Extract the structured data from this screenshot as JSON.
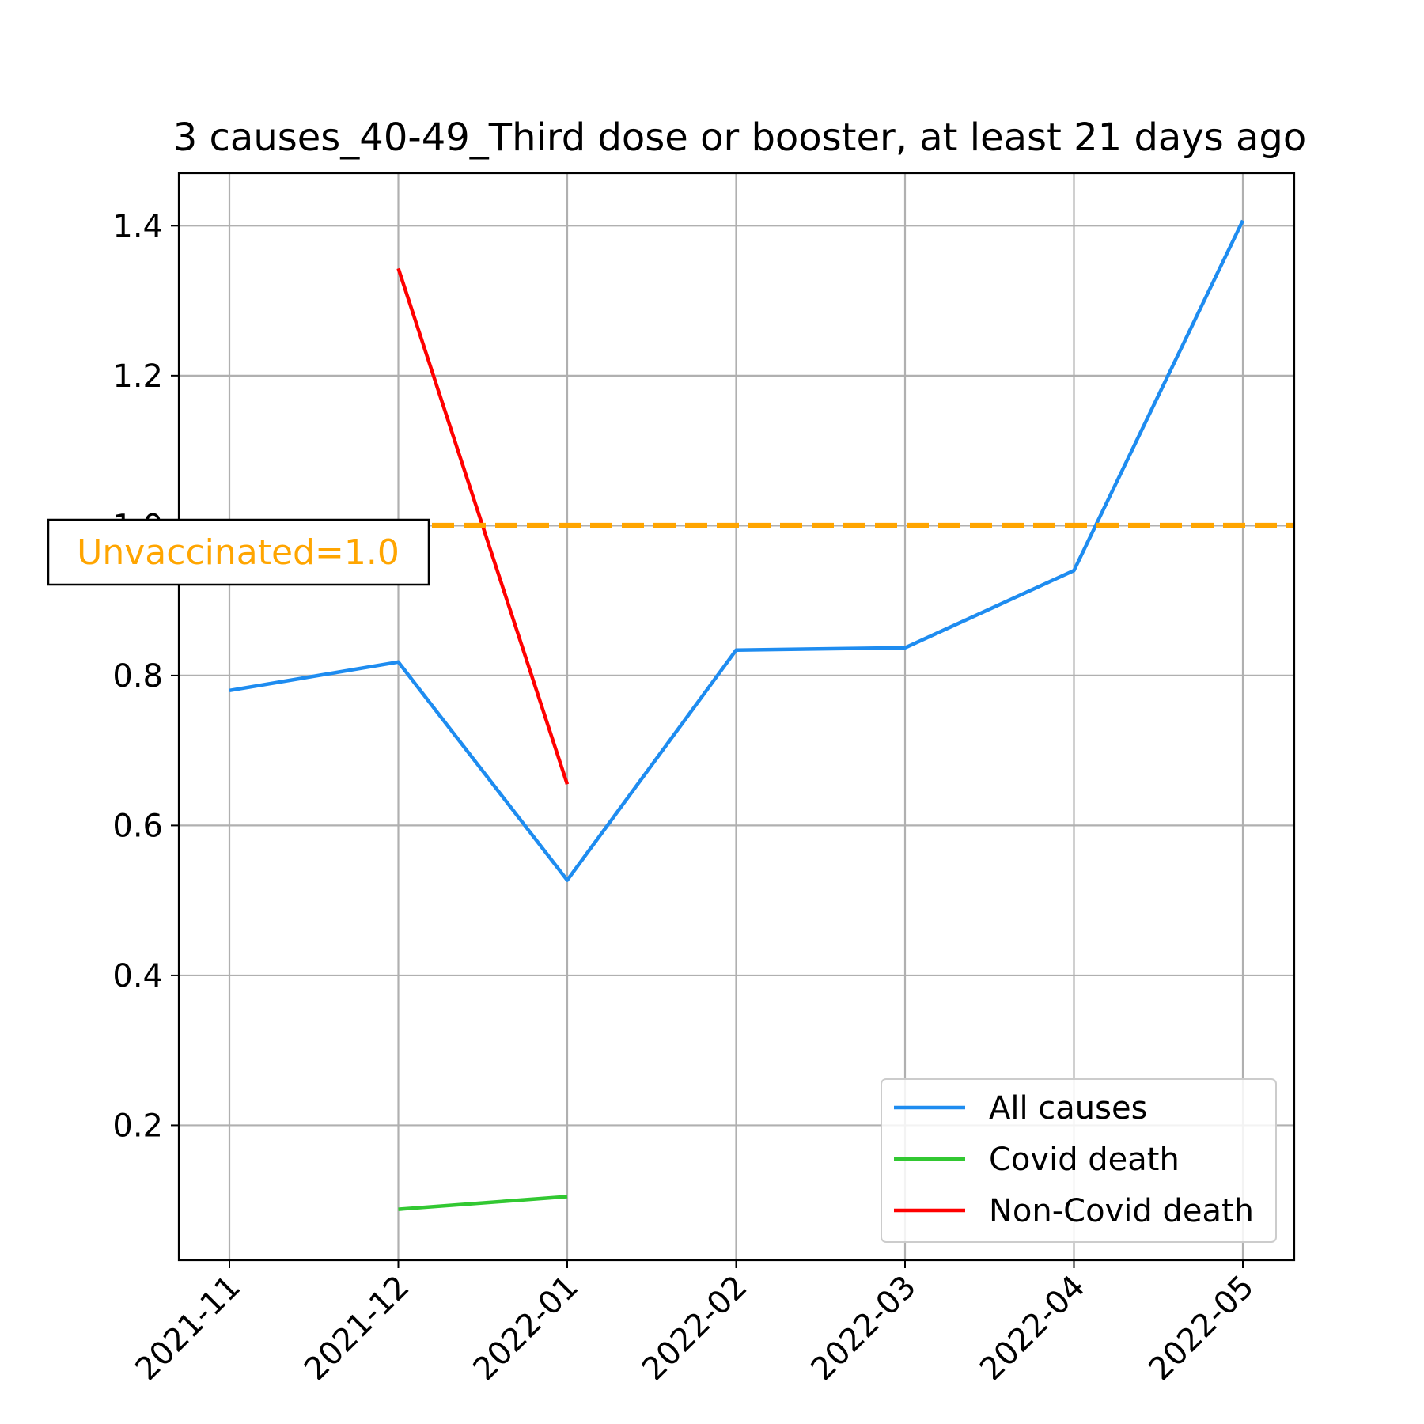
{
  "chart_data": {
    "type": "line",
    "title": "3 causes_40-49_Third dose or booster, at least 21 days ago",
    "xlabel": "",
    "ylabel": "",
    "x": [
      "2021-11",
      "2021-12",
      "2022-01",
      "2022-02",
      "2022-03",
      "2022-04",
      "2022-05"
    ],
    "ylim": [
      0.02,
      1.47
    ],
    "yticks": [
      0.2,
      0.4,
      0.6,
      0.8,
      1.0,
      1.2,
      1.4
    ],
    "ytick_labels": [
      "0.2",
      "0.4",
      "0.6",
      "0.8",
      "1.0",
      "1.2",
      "1.4"
    ],
    "grid": true,
    "legend_position": "lower right",
    "series": [
      {
        "name": "All causes",
        "color": "#1e8cf0",
        "values": [
          0.78,
          0.818,
          0.527,
          0.834,
          0.837,
          0.94,
          1.407
        ]
      },
      {
        "name": "Covid death",
        "color": "#32c832",
        "values": [
          null,
          0.088,
          0.105,
          null,
          null,
          null,
          null
        ]
      },
      {
        "name": "Non-Covid death",
        "color": "#ff0000",
        "values": [
          null,
          1.343,
          0.655,
          null,
          null,
          null,
          null
        ]
      }
    ],
    "reference_line": {
      "y": 1.0,
      "color": "#ffa500",
      "style": "dashed"
    },
    "annotation": {
      "text": "Unvaccinated=1.0",
      "color": "#ffa500"
    }
  }
}
